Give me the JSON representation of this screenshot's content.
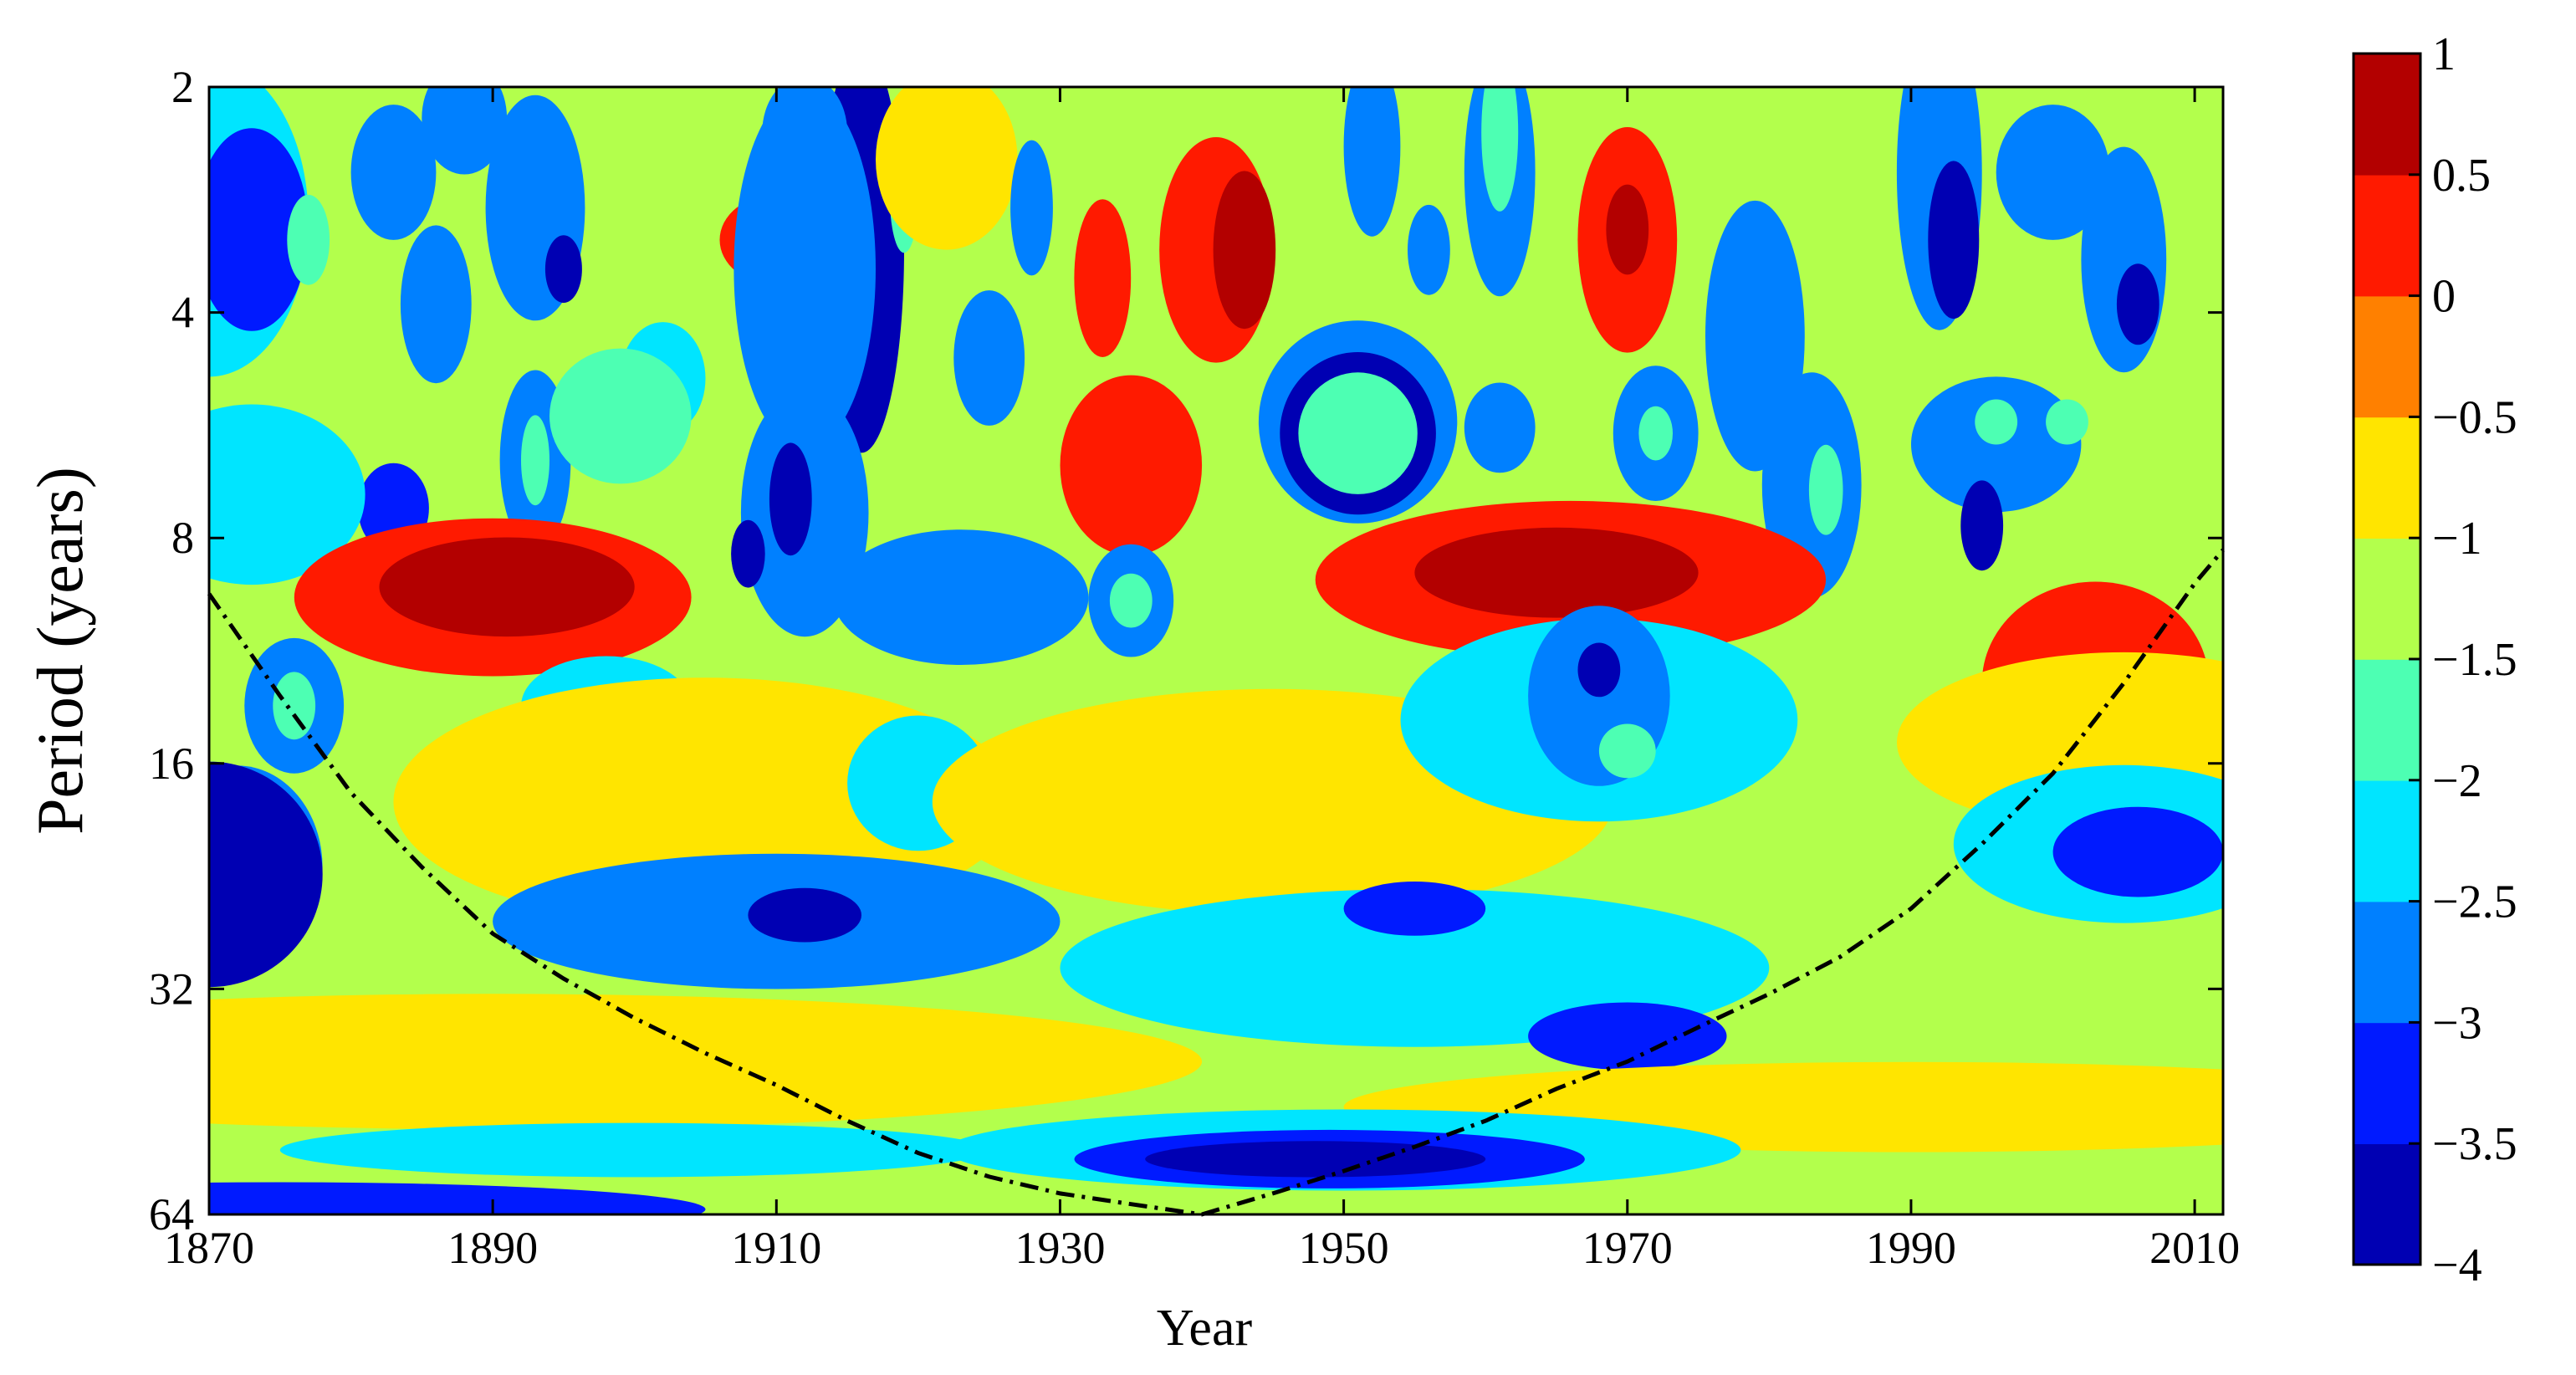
{
  "chart_data": {
    "type": "heatmap",
    "subtype": "wavelet-power-spectrum-contour",
    "title": "",
    "xlabel": "Year",
    "ylabel": "Period (years)",
    "xlim": [
      1870,
      2012
    ],
    "ylim": [
      2,
      64
    ],
    "yscale": "log2",
    "yreversed": true,
    "x_ticks": [
      1870,
      1890,
      1910,
      1930,
      1950,
      1970,
      1990,
      2010
    ],
    "y_ticks": [
      2,
      4,
      8,
      16,
      32,
      64
    ],
    "colormap": "jet",
    "colorbar": {
      "range": [
        -4,
        1
      ],
      "ticks": [
        1,
        0.5,
        0,
        -0.5,
        -1,
        -1.5,
        -2,
        -2.5,
        -3,
        -3.5,
        -4
      ],
      "tick_labels": [
        "1",
        "0.5",
        "0",
        "−0.5",
        "−1",
        "−1.5",
        "−2",
        "−2.5",
        "−3",
        "−3.5",
        "−4"
      ],
      "levels": 10,
      "placement": "right"
    },
    "background_level": -1.25,
    "regions": [
      {
        "year": 1870,
        "period": 3.0,
        "level": -2.5,
        "wy": 7,
        "wp": 0.7
      },
      {
        "year": 1873,
        "period": 3.1,
        "level": -3.1,
        "wy": 4,
        "wp": 0.45
      },
      {
        "year": 1877,
        "period": 3.2,
        "level": -1.9,
        "wy": 1.5,
        "wp": 0.2
      },
      {
        "year": 1883,
        "period": 2.6,
        "level": -2.7,
        "wy": 3,
        "wp": 0.3
      },
      {
        "year": 1888,
        "period": 2.2,
        "level": -2.9,
        "wy": 3,
        "wp": 0.25
      },
      {
        "year": 1886,
        "period": 3.9,
        "level": -3.0,
        "wy": 2.5,
        "wp": 0.35
      },
      {
        "year": 1893,
        "period": 2.9,
        "level": -2.6,
        "wy": 3.5,
        "wp": 0.5
      },
      {
        "year": 1893,
        "period": 6.3,
        "level": -2.9,
        "wy": 2.5,
        "wp": 0.4
      },
      {
        "year": 1893,
        "period": 6.3,
        "level": -1.9,
        "wy": 1,
        "wp": 0.2
      },
      {
        "year": 1895,
        "period": 3.5,
        "level": -3.6,
        "wy": 1.3,
        "wp": 0.15
      },
      {
        "year": 1883,
        "period": 7.3,
        "level": -3.2,
        "wy": 2.5,
        "wp": 0.2
      },
      {
        "year": 1873,
        "period": 7.0,
        "level": -2.5,
        "wy": 8,
        "wp": 0.4
      },
      {
        "year": 1902,
        "period": 4.9,
        "level": -2.3,
        "wy": 3,
        "wp": 0.25
      },
      {
        "year": 1910,
        "period": 3.2,
        "level": 0.2,
        "wy": 4,
        "wp": 0.2
      },
      {
        "year": 1916,
        "period": 3.3,
        "level": -3.8,
        "wy": 3,
        "wp": 0.9
      },
      {
        "year": 1912,
        "period": 3.5,
        "level": -3.0,
        "wy": 5,
        "wp": 0.8
      },
      {
        "year": 1919,
        "period": 2.8,
        "level": -1.9,
        "wy": 1,
        "wp": 0.25
      },
      {
        "year": 1912,
        "period": 2.3,
        "level": -2.7,
        "wy": 3,
        "wp": 0.25
      },
      {
        "year": 1922,
        "period": 2.5,
        "level": -1.0,
        "wy": 5,
        "wp": 0.4
      },
      {
        "year": 1928,
        "period": 2.9,
        "level": -2.6,
        "wy": 1.5,
        "wp": 0.3
      },
      {
        "year": 1925,
        "period": 4.6,
        "level": -2.8,
        "wy": 2.5,
        "wp": 0.3
      },
      {
        "year": 1912,
        "period": 7.4,
        "level": -3.0,
        "wy": 4.5,
        "wp": 0.55
      },
      {
        "year": 1911,
        "period": 7.1,
        "level": -3.8,
        "wy": 1.5,
        "wp": 0.25
      },
      {
        "year": 1908,
        "period": 8.4,
        "level": -3.8,
        "wy": 1.2,
        "wp": 0.15
      },
      {
        "year": 1899,
        "period": 5.5,
        "level": -2.0,
        "wy": 5,
        "wp": 0.3
      },
      {
        "year": 1933,
        "period": 3.6,
        "level": 0.1,
        "wy": 2,
        "wp": 0.35
      },
      {
        "year": 1935,
        "period": 6.4,
        "level": 0.2,
        "wy": 5,
        "wp": 0.4
      },
      {
        "year": 1941,
        "period": 3.3,
        "level": 0.2,
        "wy": 4,
        "wp": 0.5
      },
      {
        "year": 1943,
        "period": 3.3,
        "level": 0.9,
        "wy": 2.2,
        "wp": 0.35
      },
      {
        "year": 1952,
        "period": 2.4,
        "level": -2.6,
        "wy": 2,
        "wp": 0.4
      },
      {
        "year": 1956,
        "period": 3.3,
        "level": -2.8,
        "wy": 1.5,
        "wp": 0.2
      },
      {
        "year": 1951,
        "period": 5.6,
        "level": -3.0,
        "wy": 7,
        "wp": 0.45
      },
      {
        "year": 1951,
        "period": 5.8,
        "level": -3.9,
        "wy": 5.5,
        "wp": 0.36
      },
      {
        "year": 1951,
        "period": 5.8,
        "level": -1.9,
        "wy": 4.2,
        "wp": 0.27
      },
      {
        "year": 1961,
        "period": 5.7,
        "level": -3.0,
        "wy": 2.5,
        "wp": 0.2
      },
      {
        "year": 1961,
        "period": 2.6,
        "level": -2.6,
        "wy": 2.5,
        "wp": 0.55
      },
      {
        "year": 1961,
        "period": 2.3,
        "level": -1.9,
        "wy": 1.3,
        "wp": 0.35
      },
      {
        "year": 1970,
        "period": 3.2,
        "level": 0.2,
        "wy": 3.5,
        "wp": 0.5
      },
      {
        "year": 1970,
        "period": 3.1,
        "level": 0.9,
        "wy": 1.5,
        "wp": 0.2
      },
      {
        "year": 1972,
        "period": 5.8,
        "level": -3.0,
        "wy": 3,
        "wp": 0.3
      },
      {
        "year": 1972,
        "period": 5.8,
        "level": -1.9,
        "wy": 1.2,
        "wp": 0.12
      },
      {
        "year": 1979,
        "period": 4.3,
        "level": -2.8,
        "wy": 3.5,
        "wp": 0.6
      },
      {
        "year": 1983,
        "period": 6.8,
        "level": -3.0,
        "wy": 3.5,
        "wp": 0.5
      },
      {
        "year": 1984,
        "period": 6.9,
        "level": -1.9,
        "wy": 1.2,
        "wp": 0.2
      },
      {
        "year": 1992,
        "period": 2.6,
        "level": -3.0,
        "wy": 3,
        "wp": 0.7
      },
      {
        "year": 1993,
        "period": 3.2,
        "level": -3.9,
        "wy": 1.8,
        "wp": 0.35
      },
      {
        "year": 1996,
        "period": 6.0,
        "level": -3.0,
        "wy": 6,
        "wp": 0.3
      },
      {
        "year": 1996,
        "period": 5.6,
        "level": -1.9,
        "wy": 1.5,
        "wp": 0.1
      },
      {
        "year": 2001,
        "period": 5.6,
        "level": -1.9,
        "wy": 1.5,
        "wp": 0.1
      },
      {
        "year": 1995,
        "period": 7.7,
        "level": -3.8,
        "wy": 1.5,
        "wp": 0.2
      },
      {
        "year": 2005,
        "period": 3.4,
        "level": -2.9,
        "wy": 3,
        "wp": 0.5
      },
      {
        "year": 2006,
        "period": 3.9,
        "level": -3.8,
        "wy": 1.5,
        "wp": 0.18
      },
      {
        "year": 2000,
        "period": 2.6,
        "level": -3.0,
        "wy": 4,
        "wp": 0.3
      },
      {
        "year": 1890,
        "period": 9.6,
        "level": 0.1,
        "wy": 14,
        "wp": 0.35
      },
      {
        "year": 1891,
        "period": 9.3,
        "level": 0.9,
        "wy": 9,
        "wp": 0.22
      },
      {
        "year": 1966,
        "period": 9.1,
        "level": 0.1,
        "wy": 18,
        "wp": 0.35
      },
      {
        "year": 1965,
        "period": 8.9,
        "level": 0.9,
        "wy": 10,
        "wp": 0.2
      },
      {
        "year": 1923,
        "period": 9.6,
        "level": -2.6,
        "wy": 9,
        "wp": 0.3
      },
      {
        "year": 1935,
        "period": 9.7,
        "level": -3.0,
        "wy": 3,
        "wp": 0.25
      },
      {
        "year": 1935,
        "period": 9.7,
        "level": -1.9,
        "wy": 1.5,
        "wp": 0.12
      },
      {
        "year": 1922,
        "period": 9.6,
        "level": -3.0,
        "wy": 3,
        "wp": 0.18
      },
      {
        "year": 1876,
        "period": 13.4,
        "level": -3.0,
        "wy": 3.5,
        "wp": 0.3
      },
      {
        "year": 1876,
        "period": 13.4,
        "level": -1.9,
        "wy": 1.5,
        "wp": 0.15
      },
      {
        "year": 1898,
        "period": 13.5,
        "level": -3.0,
        "wy": 2.5,
        "wp": 0.12
      },
      {
        "year": 1898,
        "period": 13.4,
        "level": -2.4,
        "wy": 6,
        "wp": 0.22
      },
      {
        "year": 1905,
        "period": 18.0,
        "level": -0.6,
        "wy": 22,
        "wp": 0.55
      },
      {
        "year": 1920,
        "period": 17.0,
        "level": -2.3,
        "wy": 5,
        "wp": 0.3
      },
      {
        "year": 1945,
        "period": 18.0,
        "level": -0.6,
        "wy": 24,
        "wp": 0.5
      },
      {
        "year": 1968,
        "period": 14.0,
        "level": -2.4,
        "wy": 14,
        "wp": 0.45
      },
      {
        "year": 1968,
        "period": 13.0,
        "level": -3.0,
        "wy": 5,
        "wp": 0.4
      },
      {
        "year": 1968,
        "period": 12.0,
        "level": -3.9,
        "wy": 1.5,
        "wp": 0.12
      },
      {
        "year": 1970,
        "period": 15.4,
        "level": -1.9,
        "wy": 2,
        "wp": 0.12
      },
      {
        "year": 2003,
        "period": 12.5,
        "level": 0.1,
        "wy": 8,
        "wp": 0.45
      },
      {
        "year": 2005,
        "period": 15.0,
        "level": -0.6,
        "wy": 16,
        "wp": 0.4
      },
      {
        "year": 1872,
        "period": 22.0,
        "level": -3.0,
        "wy": 6,
        "wp": 0.45
      },
      {
        "year": 1872,
        "period": 22.0,
        "level": -1.9,
        "wy": 3,
        "wp": 0.22
      },
      {
        "year": 1870,
        "period": 22.5,
        "level": -3.8,
        "wy": 8,
        "wp": 0.5
      },
      {
        "year": 1910,
        "period": 26.0,
        "level": -2.6,
        "wy": 20,
        "wp": 0.3
      },
      {
        "year": 1911,
        "period": 25.5,
        "level": -3.0,
        "wy": 10,
        "wp": 0.18
      },
      {
        "year": 1912,
        "period": 25.5,
        "level": -3.7,
        "wy": 4,
        "wp": 0.12
      },
      {
        "year": 1955,
        "period": 30.0,
        "level": -2.4,
        "wy": 25,
        "wp": 0.35
      },
      {
        "year": 1955,
        "period": 25.0,
        "level": -3.1,
        "wy": 5,
        "wp": 0.12
      },
      {
        "year": 1970,
        "period": 37.0,
        "level": -3.1,
        "wy": 7,
        "wp": 0.15
      },
      {
        "year": 2005,
        "period": 20.5,
        "level": -2.5,
        "wy": 12,
        "wp": 0.35
      },
      {
        "year": 2006,
        "period": 21.0,
        "level": -3.1,
        "wy": 6,
        "wp": 0.2
      },
      {
        "year": 1890,
        "period": 40.0,
        "level": -0.6,
        "wy": 50,
        "wp": 0.3
      },
      {
        "year": 1990,
        "period": 46.0,
        "level": -0.6,
        "wy": 40,
        "wp": 0.2
      },
      {
        "year": 1950,
        "period": 52.5,
        "level": -2.5,
        "wy": 28,
        "wp": 0.18
      },
      {
        "year": 1949,
        "period": 54.0,
        "level": -3.1,
        "wy": 18,
        "wp": 0.13
      },
      {
        "year": 1948,
        "period": 54.0,
        "level": -3.8,
        "wy": 12,
        "wp": 0.08
      },
      {
        "year": 1875,
        "period": 63.0,
        "level": -3.2,
        "wy": 30,
        "wp": 0.12
      },
      {
        "year": 1900,
        "period": 52.5,
        "level": -2.3,
        "wy": 25,
        "wp": 0.12
      }
    ],
    "cone_of_influence": [
      [
        1870,
        9.5
      ],
      [
        1875,
        13
      ],
      [
        1880,
        17.5
      ],
      [
        1885,
        22
      ],
      [
        1890,
        27
      ],
      [
        1895,
        31
      ],
      [
        1900,
        35
      ],
      [
        1905,
        39
      ],
      [
        1910,
        43
      ],
      [
        1915,
        48
      ],
      [
        1920,
        53
      ],
      [
        1925,
        57
      ],
      [
        1930,
        60
      ],
      [
        1935,
        62
      ],
      [
        1940,
        64
      ],
      [
        1945,
        60
      ],
      [
        1950,
        56
      ],
      [
        1955,
        52
      ],
      [
        1960,
        48
      ],
      [
        1965,
        43.5
      ],
      [
        1970,
        40
      ],
      [
        1975,
        36
      ],
      [
        1980,
        32.5
      ],
      [
        1985,
        29
      ],
      [
        1990,
        25
      ],
      [
        1995,
        20.5
      ],
      [
        2000,
        16.5
      ],
      [
        2005,
        12.5
      ],
      [
        2010,
        9.2
      ],
      [
        2012,
        8.3
      ]
    ]
  }
}
